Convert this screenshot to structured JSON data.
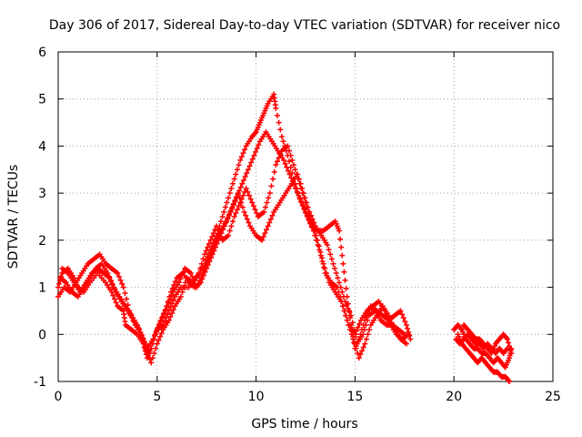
{
  "chart_data": {
    "type": "scatter",
    "title": "Day 306 of 2017, Sidereal Day-to-day VTEC variation (SDTVAR) for receiver nico",
    "xlabel": "GPS time / hours",
    "ylabel": "SDTVAR / TECUs",
    "xlim": [
      0,
      25
    ],
    "ylim": [
      -1,
      6
    ],
    "xticks": [
      "0",
      "5",
      "10",
      "15",
      "20",
      "25"
    ],
    "yticks": [
      "-1",
      "0",
      "1",
      "2",
      "3",
      "4",
      "5",
      "6"
    ],
    "grid": true,
    "marker": "+",
    "color": "#ff0000",
    "series": [
      {
        "values": [
          [
            0.0,
            1.0
          ],
          [
            0.2,
            1.3
          ],
          [
            0.5,
            1.4
          ],
          [
            0.8,
            1.2
          ],
          [
            1.0,
            1.0
          ],
          [
            1.3,
            0.9
          ],
          [
            1.6,
            1.1
          ],
          [
            2.0,
            1.3
          ],
          [
            2.4,
            1.1
          ],
          [
            2.7,
            0.9
          ],
          [
            3.0,
            0.6
          ],
          [
            3.3,
            0.5
          ],
          [
            3.4,
            0.2
          ],
          [
            3.7,
            0.1
          ],
          [
            4.0,
            0.0
          ],
          [
            4.3,
            -0.2
          ],
          [
            4.5,
            -0.5
          ],
          [
            4.7,
            -0.3
          ],
          [
            5.0,
            0.1
          ],
          [
            5.3,
            0.2
          ],
          [
            5.6,
            0.5
          ],
          [
            5.9,
            0.8
          ],
          [
            6.2,
            1.0
          ],
          [
            6.6,
            1.0
          ],
          [
            7.0,
            1.2
          ],
          [
            7.4,
            1.5
          ],
          [
            7.7,
            1.8
          ],
          [
            8.0,
            2.1
          ],
          [
            8.3,
            2.5
          ],
          [
            8.6,
            2.9
          ],
          [
            8.9,
            3.3
          ],
          [
            9.2,
            3.7
          ],
          [
            9.5,
            4.0
          ],
          [
            9.8,
            4.2
          ],
          [
            10.0,
            4.3
          ],
          [
            10.2,
            4.5
          ],
          [
            10.4,
            4.7
          ],
          [
            10.6,
            4.9
          ],
          [
            10.9,
            5.1
          ],
          [
            11.0,
            4.8
          ],
          [
            11.3,
            4.2
          ],
          [
            11.6,
            3.8
          ],
          [
            11.9,
            3.3
          ],
          [
            12.2,
            2.9
          ],
          [
            12.5,
            2.6
          ],
          [
            12.8,
            2.3
          ],
          [
            13.1,
            2.2
          ],
          [
            13.4,
            2.2
          ],
          [
            13.7,
            2.3
          ],
          [
            14.0,
            2.4
          ],
          [
            14.2,
            2.2
          ],
          [
            14.4,
            1.5
          ],
          [
            14.6,
            0.8
          ],
          [
            14.8,
            0.2
          ],
          [
            15.0,
            -0.3
          ],
          [
            15.2,
            -0.1
          ],
          [
            15.5,
            0.3
          ],
          [
            15.8,
            0.6
          ],
          [
            16.1,
            0.5
          ],
          [
            16.4,
            0.4
          ],
          [
            16.7,
            0.3
          ],
          [
            17.0,
            0.4
          ],
          [
            17.3,
            0.5
          ],
          [
            17.6,
            0.2
          ],
          [
            17.8,
            -0.1
          ]
        ]
      },
      {
        "values": [
          [
            0.0,
            0.8
          ],
          [
            0.3,
            1.0
          ],
          [
            0.6,
            0.9
          ],
          [
            0.9,
            1.1
          ],
          [
            1.2,
            1.3
          ],
          [
            1.5,
            1.5
          ],
          [
            1.8,
            1.6
          ],
          [
            2.1,
            1.7
          ],
          [
            2.4,
            1.5
          ],
          [
            2.7,
            1.4
          ],
          [
            3.0,
            1.3
          ],
          [
            3.3,
            1.0
          ],
          [
            3.6,
            0.5
          ],
          [
            3.9,
            0.2
          ],
          [
            4.2,
            0.0
          ],
          [
            4.5,
            -0.3
          ],
          [
            4.8,
            -0.1
          ],
          [
            5.1,
            0.2
          ],
          [
            5.4,
            0.5
          ],
          [
            5.7,
            0.9
          ],
          [
            6.0,
            1.2
          ],
          [
            6.3,
            1.3
          ],
          [
            6.6,
            1.1
          ],
          [
            6.9,
            1.0
          ],
          [
            7.2,
            1.1
          ],
          [
            7.5,
            1.4
          ],
          [
            7.8,
            1.7
          ],
          [
            8.1,
            2.0
          ],
          [
            8.4,
            2.3
          ],
          [
            8.7,
            2.6
          ],
          [
            9.0,
            2.9
          ],
          [
            9.3,
            3.2
          ],
          [
            9.6,
            3.5
          ],
          [
            9.9,
            3.8
          ],
          [
            10.2,
            4.1
          ],
          [
            10.5,
            4.3
          ],
          [
            10.8,
            4.1
          ],
          [
            11.1,
            3.9
          ],
          [
            11.4,
            3.7
          ],
          [
            11.7,
            3.4
          ],
          [
            12.0,
            3.1
          ],
          [
            12.3,
            2.8
          ],
          [
            12.6,
            2.5
          ],
          [
            12.9,
            2.2
          ],
          [
            13.2,
            1.8
          ],
          [
            13.5,
            1.3
          ],
          [
            13.8,
            1.1
          ],
          [
            14.1,
            1.0
          ],
          [
            14.4,
            0.6
          ],
          [
            14.7,
            0.2
          ],
          [
            15.0,
            0.0
          ],
          [
            15.3,
            0.3
          ],
          [
            15.6,
            0.5
          ],
          [
            15.9,
            0.6
          ],
          [
            16.2,
            0.7
          ],
          [
            16.5,
            0.5
          ],
          [
            16.8,
            0.2
          ],
          [
            17.1,
            0.0
          ],
          [
            17.4,
            -0.1
          ],
          [
            17.7,
            0.0
          ]
        ]
      },
      {
        "values": [
          [
            0.1,
            1.2
          ],
          [
            0.4,
            1.1
          ],
          [
            0.7,
            0.9
          ],
          [
            1.0,
            0.8
          ],
          [
            1.3,
            1.0
          ],
          [
            1.6,
            1.2
          ],
          [
            1.9,
            1.4
          ],
          [
            2.2,
            1.5
          ],
          [
            2.5,
            1.3
          ],
          [
            2.8,
            1.0
          ],
          [
            3.1,
            0.8
          ],
          [
            3.4,
            0.6
          ],
          [
            3.7,
            0.4
          ],
          [
            4.0,
            0.2
          ],
          [
            4.3,
            -0.1
          ],
          [
            4.6,
            -0.4
          ],
          [
            4.9,
            0.0
          ],
          [
            5.2,
            0.3
          ],
          [
            5.5,
            0.6
          ],
          [
            5.8,
            0.9
          ],
          [
            6.1,
            1.1
          ],
          [
            6.4,
            1.4
          ],
          [
            6.7,
            1.3
          ],
          [
            7.0,
            1.0
          ],
          [
            7.3,
            1.3
          ],
          [
            7.6,
            1.6
          ],
          [
            7.9,
            1.9
          ],
          [
            8.2,
            2.2
          ],
          [
            8.5,
            2.4
          ],
          [
            8.8,
            2.7
          ],
          [
            9.1,
            3.0
          ],
          [
            9.4,
            2.6
          ],
          [
            9.7,
            2.3
          ],
          [
            10.0,
            2.1
          ],
          [
            10.3,
            2.0
          ],
          [
            10.6,
            2.3
          ],
          [
            10.9,
            2.6
          ],
          [
            11.2,
            2.8
          ],
          [
            11.5,
            3.0
          ],
          [
            11.8,
            3.2
          ],
          [
            12.1,
            3.4
          ],
          [
            12.4,
            3.0
          ],
          [
            12.7,
            2.6
          ],
          [
            13.0,
            2.3
          ],
          [
            13.3,
            2.1
          ],
          [
            13.6,
            1.9
          ],
          [
            13.9,
            1.5
          ],
          [
            14.2,
            1.1
          ],
          [
            14.5,
            0.7
          ],
          [
            14.8,
            0.4
          ],
          [
            15.1,
            -0.2
          ],
          [
            15.4,
            0.0
          ],
          [
            15.7,
            0.4
          ],
          [
            16.0,
            0.5
          ],
          [
            16.3,
            0.3
          ],
          [
            16.6,
            0.2
          ],
          [
            16.9,
            0.2
          ],
          [
            17.2,
            0.1
          ],
          [
            17.5,
            0.0
          ]
        ]
      },
      {
        "values": [
          [
            0.2,
            1.4
          ],
          [
            0.5,
            1.3
          ],
          [
            0.8,
            1.1
          ],
          [
            1.1,
            0.9
          ],
          [
            1.4,
            1.1
          ],
          [
            1.7,
            1.3
          ],
          [
            2.0,
            1.4
          ],
          [
            2.3,
            1.3
          ],
          [
            2.6,
            1.2
          ],
          [
            2.9,
            0.9
          ],
          [
            3.2,
            0.7
          ],
          [
            3.5,
            0.5
          ],
          [
            3.8,
            0.3
          ],
          [
            4.1,
            0.1
          ],
          [
            4.4,
            -0.3
          ],
          [
            4.7,
            -0.6
          ],
          [
            5.0,
            -0.2
          ],
          [
            5.3,
            0.1
          ],
          [
            5.6,
            0.3
          ],
          [
            5.9,
            0.6
          ],
          [
            6.2,
            0.8
          ],
          [
            6.5,
            1.2
          ],
          [
            6.8,
            1.1
          ],
          [
            7.1,
            1.3
          ],
          [
            7.4,
            1.7
          ],
          [
            7.7,
            2.0
          ],
          [
            8.0,
            2.3
          ],
          [
            8.3,
            2.0
          ],
          [
            8.6,
            2.1
          ],
          [
            8.9,
            2.5
          ],
          [
            9.2,
            2.8
          ],
          [
            9.5,
            3.1
          ],
          [
            9.8,
            2.8
          ],
          [
            10.1,
            2.5
          ],
          [
            10.4,
            2.6
          ],
          [
            10.7,
            3.0
          ],
          [
            11.0,
            3.6
          ],
          [
            11.3,
            3.9
          ],
          [
            11.6,
            4.0
          ],
          [
            11.9,
            3.6
          ],
          [
            12.2,
            3.2
          ],
          [
            12.5,
            2.8
          ],
          [
            12.8,
            2.4
          ],
          [
            13.1,
            2.0
          ],
          [
            13.4,
            1.5
          ],
          [
            13.7,
            1.1
          ],
          [
            14.0,
            0.9
          ],
          [
            14.3,
            0.7
          ],
          [
            14.6,
            0.3
          ],
          [
            14.9,
            -0.1
          ],
          [
            15.2,
            -0.5
          ],
          [
            15.5,
            -0.2
          ],
          [
            15.8,
            0.2
          ],
          [
            16.1,
            0.4
          ],
          [
            16.4,
            0.6
          ],
          [
            16.7,
            0.4
          ],
          [
            17.0,
            0.1
          ],
          [
            17.3,
            -0.1
          ],
          [
            17.6,
            -0.2
          ]
        ]
      },
      {
        "values": [
          [
            20.0,
            0.1
          ],
          [
            20.2,
            0.2
          ],
          [
            20.4,
            0.1
          ],
          [
            20.6,
            -0.1
          ],
          [
            20.8,
            -0.2
          ],
          [
            21.0,
            -0.3
          ],
          [
            21.2,
            -0.3
          ],
          [
            21.4,
            -0.4
          ],
          [
            21.6,
            -0.4
          ],
          [
            21.8,
            -0.5
          ],
          [
            22.0,
            -0.6
          ],
          [
            22.2,
            -0.5
          ],
          [
            22.4,
            -0.6
          ],
          [
            22.6,
            -0.7
          ],
          [
            22.8,
            -0.5
          ],
          [
            22.9,
            -0.3
          ],
          [
            20.1,
            -0.1
          ],
          [
            20.3,
            -0.2
          ],
          [
            20.5,
            -0.1
          ],
          [
            20.7,
            0.0
          ],
          [
            20.9,
            -0.1
          ],
          [
            21.1,
            -0.2
          ],
          [
            21.3,
            -0.2
          ],
          [
            21.5,
            -0.3
          ],
          [
            21.7,
            -0.2
          ],
          [
            21.9,
            -0.3
          ],
          [
            22.1,
            -0.4
          ],
          [
            22.3,
            -0.3
          ],
          [
            22.5,
            -0.4
          ],
          [
            22.7,
            -0.3
          ],
          [
            20.2,
            0.0
          ],
          [
            20.4,
            -0.2
          ],
          [
            20.6,
            -0.3
          ],
          [
            20.8,
            -0.4
          ],
          [
            21.0,
            -0.5
          ],
          [
            21.2,
            -0.6
          ],
          [
            21.4,
            -0.5
          ],
          [
            21.6,
            -0.6
          ],
          [
            21.8,
            -0.7
          ],
          [
            22.0,
            -0.8
          ],
          [
            22.2,
            -0.8
          ],
          [
            22.4,
            -0.9
          ],
          [
            22.6,
            -0.9
          ],
          [
            22.8,
            -1.0
          ],
          [
            20.5,
            0.2
          ],
          [
            20.7,
            0.1
          ],
          [
            20.9,
            0.0
          ],
          [
            21.1,
            -0.1
          ],
          [
            21.3,
            -0.1
          ],
          [
            21.5,
            -0.2
          ],
          [
            21.7,
            -0.3
          ],
          [
            21.9,
            -0.4
          ],
          [
            22.1,
            -0.2
          ],
          [
            22.3,
            -0.1
          ],
          [
            22.5,
            0.0
          ],
          [
            22.7,
            -0.1
          ],
          [
            22.9,
            -0.4
          ]
        ]
      }
    ]
  }
}
